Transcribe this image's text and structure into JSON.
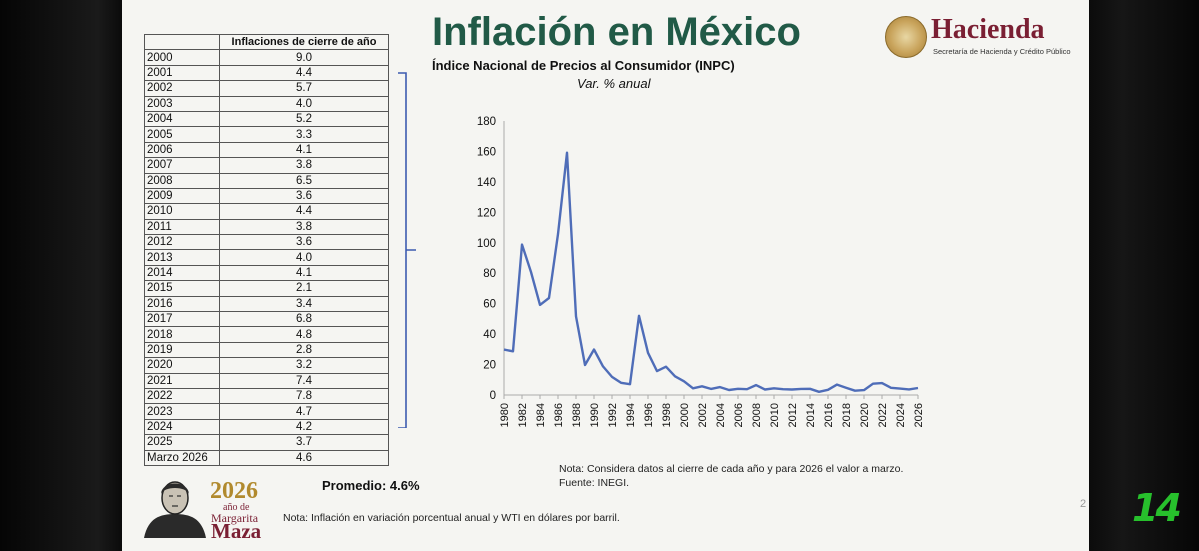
{
  "slide": {
    "title": "Inflación en México",
    "subtitle": "Índice Nacional de Precios al Consumidor (INPC)",
    "subtitle2": "Var. % anual",
    "logo": {
      "name": "Hacienda",
      "sub": "Secretaría de Hacienda y Crédito Público"
    },
    "promedio": "Promedio: 4.6%",
    "note1": "Nota: Considera datos al cierre de cada año y para 2026 el valor a marzo.",
    "note2": "Fuente: INEGI.",
    "note3": "Nota: Inflación en variación porcentual anual y WTI en dólares por barril.",
    "page_number": "2",
    "year_logo": {
      "year": "2026",
      "line1": "año de",
      "line2": "Margarita",
      "line3": "Maza"
    },
    "channel_logo": "14"
  },
  "table": {
    "header": "Inflaciones de cierre de año",
    "rows": [
      {
        "year": "2000",
        "value": "9.0"
      },
      {
        "year": "2001",
        "value": "4.4"
      },
      {
        "year": "2002",
        "value": "5.7"
      },
      {
        "year": "2003",
        "value": "4.0"
      },
      {
        "year": "2004",
        "value": "5.2"
      },
      {
        "year": "2005",
        "value": "3.3"
      },
      {
        "year": "2006",
        "value": "4.1"
      },
      {
        "year": "2007",
        "value": "3.8"
      },
      {
        "year": "2008",
        "value": "6.5"
      },
      {
        "year": "2009",
        "value": "3.6"
      },
      {
        "year": "2010",
        "value": "4.4"
      },
      {
        "year": "2011",
        "value": "3.8"
      },
      {
        "year": "2012",
        "value": "3.6"
      },
      {
        "year": "2013",
        "value": "4.0"
      },
      {
        "year": "2014",
        "value": "4.1"
      },
      {
        "year": "2015",
        "value": "2.1"
      },
      {
        "year": "2016",
        "value": "3.4"
      },
      {
        "year": "2017",
        "value": "6.8"
      },
      {
        "year": "2018",
        "value": "4.8"
      },
      {
        "year": "2019",
        "value": "2.8"
      },
      {
        "year": "2020",
        "value": "3.2"
      },
      {
        "year": "2021",
        "value": "7.4"
      },
      {
        "year": "2022",
        "value": "7.8"
      },
      {
        "year": "2023",
        "value": "4.7"
      },
      {
        "year": "2024",
        "value": "4.2"
      },
      {
        "year": "2025",
        "value": "3.7"
      },
      {
        "year": "Marzo 2026",
        "value": "4.6"
      }
    ]
  },
  "chart_data": {
    "type": "line",
    "x": [
      1980,
      1981,
      1982,
      1983,
      1984,
      1985,
      1986,
      1987,
      1988,
      1989,
      1990,
      1991,
      1992,
      1993,
      1994,
      1995,
      1996,
      1997,
      1998,
      1999,
      2000,
      2001,
      2002,
      2003,
      2004,
      2005,
      2006,
      2007,
      2008,
      2009,
      2010,
      2011,
      2012,
      2013,
      2014,
      2015,
      2016,
      2017,
      2018,
      2019,
      2020,
      2021,
      2022,
      2023,
      2024,
      2025,
      2026
    ],
    "series": [
      {
        "values": [
          29.8,
          28.7,
          98.8,
          80.8,
          59.2,
          63.7,
          105.7,
          159.2,
          51.7,
          19.7,
          29.9,
          18.8,
          11.9,
          8.0,
          7.1,
          52.0,
          27.7,
          15.7,
          18.6,
          12.3,
          9.0,
          4.4,
          5.7,
          4.0,
          5.2,
          3.3,
          4.1,
          3.8,
          6.5,
          3.6,
          4.4,
          3.8,
          3.6,
          4.0,
          4.1,
          2.1,
          3.4,
          6.8,
          4.8,
          2.8,
          3.2,
          7.4,
          7.8,
          4.7,
          4.2,
          3.7,
          4.6
        ]
      }
    ],
    "yticks": [
      0,
      20,
      40,
      60,
      80,
      100,
      120,
      140,
      160,
      180
    ],
    "xticks": [
      "1980",
      "1982",
      "1984",
      "1986",
      "1988",
      "1990",
      "1992",
      "1994",
      "1996",
      "1998",
      "2000",
      "2002",
      "2004",
      "2006",
      "2008",
      "2010",
      "2012",
      "2014",
      "2016",
      "2018",
      "2020",
      "2022",
      "2024",
      "2026"
    ],
    "ylim": [
      0,
      180
    ],
    "xlim": [
      1980,
      2026
    ],
    "color": "#4f6db8",
    "grid": false
  }
}
